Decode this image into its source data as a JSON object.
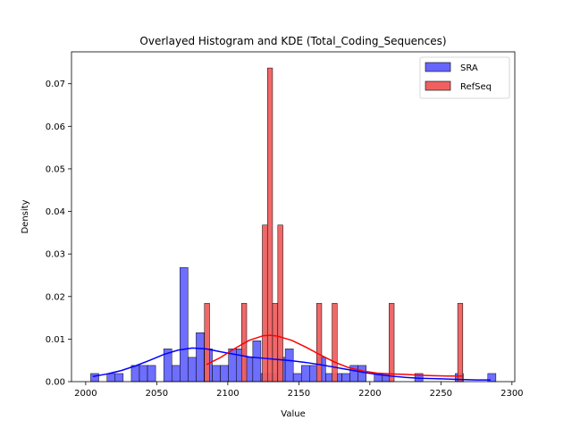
{
  "chart_data": {
    "type": "histogram",
    "title": "Overlayed Histogram and KDE (Total_Coding_Sequences)",
    "xlabel": "Value",
    "ylabel": "Density",
    "xlim": [
      1990,
      2302
    ],
    "ylim": [
      0,
      0.0775
    ],
    "xticks": [
      2000,
      2050,
      2100,
      2150,
      2200,
      2250,
      2300
    ],
    "yticks": [
      0.0,
      0.01,
      0.02,
      0.03,
      0.04,
      0.05,
      0.06,
      0.07
    ],
    "ytick_labels": [
      "0.00",
      "0.01",
      "0.02",
      "0.03",
      "0.04",
      "0.05",
      "0.06",
      "0.07"
    ],
    "legend": {
      "position": "top-right"
    },
    "series": [
      {
        "name": "SRA",
        "color": "#0000ff",
        "fill": "#6666ff",
        "bin_width": 5.7,
        "bins": [
          {
            "x0": 2003.5,
            "y": 0.0019
          },
          {
            "x0": 2015.0,
            "y": 0.0019
          },
          {
            "x0": 2020.7,
            "y": 0.0019
          },
          {
            "x0": 2032.1,
            "y": 0.0038
          },
          {
            "x0": 2037.8,
            "y": 0.0038
          },
          {
            "x0": 2043.5,
            "y": 0.0038
          },
          {
            "x0": 2054.9,
            "y": 0.0077
          },
          {
            "x0": 2060.6,
            "y": 0.0038
          },
          {
            "x0": 2066.3,
            "y": 0.0268
          },
          {
            "x0": 2072.0,
            "y": 0.0057
          },
          {
            "x0": 2077.7,
            "y": 0.0115
          },
          {
            "x0": 2083.4,
            "y": 0.0077
          },
          {
            "x0": 2089.1,
            "y": 0.0038
          },
          {
            "x0": 2094.8,
            "y": 0.0038
          },
          {
            "x0": 2100.5,
            "y": 0.0077
          },
          {
            "x0": 2106.2,
            "y": 0.0077
          },
          {
            "x0": 2111.9,
            "y": 0.0057
          },
          {
            "x0": 2117.6,
            "y": 0.0096
          },
          {
            "x0": 2123.3,
            "y": 0.0019
          },
          {
            "x0": 2129.0,
            "y": 0.0019
          },
          {
            "x0": 2134.7,
            "y": 0.0057
          },
          {
            "x0": 2140.4,
            "y": 0.0077
          },
          {
            "x0": 2146.1,
            "y": 0.0019
          },
          {
            "x0": 2151.8,
            "y": 0.0038
          },
          {
            "x0": 2157.5,
            "y": 0.0038
          },
          {
            "x0": 2163.2,
            "y": 0.0057
          },
          {
            "x0": 2168.9,
            "y": 0.0019
          },
          {
            "x0": 2174.6,
            "y": 0.0019
          },
          {
            "x0": 2180.3,
            "y": 0.0019
          },
          {
            "x0": 2186.0,
            "y": 0.0038
          },
          {
            "x0": 2191.7,
            "y": 0.0038
          },
          {
            "x0": 2203.1,
            "y": 0.0019
          },
          {
            "x0": 2208.8,
            "y": 0.0019
          },
          {
            "x0": 2231.6,
            "y": 0.0019
          },
          {
            "x0": 2260.1,
            "y": 0.0019
          },
          {
            "x0": 2283.0,
            "y": 0.0019
          }
        ],
        "kde": {
          "x": [
            2005,
            2015,
            2025,
            2035,
            2045,
            2055,
            2065,
            2075,
            2085,
            2095,
            2105,
            2115,
            2125,
            2135,
            2145,
            2155,
            2165,
            2175,
            2185,
            2195,
            2205,
            2215,
            2225,
            2235,
            2245,
            2255,
            2265,
            2275,
            2285
          ],
          "y": [
            0.0012,
            0.0018,
            0.0026,
            0.0037,
            0.005,
            0.0064,
            0.0074,
            0.0079,
            0.0077,
            0.007,
            0.0064,
            0.0058,
            0.0055,
            0.0052,
            0.0049,
            0.0045,
            0.004,
            0.0034,
            0.0028,
            0.0022,
            0.0017,
            0.0013,
            0.001,
            0.0008,
            0.0007,
            0.0006,
            0.0005,
            0.0004,
            0.0004
          ]
        }
      },
      {
        "name": "RefSeq",
        "color": "#ff0000",
        "fill": "#f06060",
        "bin_width": 3.6,
        "bins": [
          {
            "x0": 2083.6,
            "y": 0.0184
          },
          {
            "x0": 2109.7,
            "y": 0.0184
          },
          {
            "x0": 2124.3,
            "y": 0.0368
          },
          {
            "x0": 2127.9,
            "y": 0.0737
          },
          {
            "x0": 2131.5,
            "y": 0.0184
          },
          {
            "x0": 2135.2,
            "y": 0.0368
          },
          {
            "x0": 2162.5,
            "y": 0.0184
          },
          {
            "x0": 2173.4,
            "y": 0.0184
          },
          {
            "x0": 2213.5,
            "y": 0.0184
          },
          {
            "x0": 2261.8,
            "y": 0.0184
          }
        ],
        "kde": {
          "x": [
            2085,
            2095,
            2105,
            2115,
            2125,
            2130,
            2135,
            2145,
            2155,
            2165,
            2175,
            2185,
            2195,
            2205,
            2215,
            2225,
            2235,
            2245,
            2255,
            2265
          ],
          "y": [
            0.004,
            0.0057,
            0.0078,
            0.0097,
            0.0108,
            0.0109,
            0.0107,
            0.0097,
            0.0081,
            0.0063,
            0.0046,
            0.0033,
            0.0025,
            0.002,
            0.0018,
            0.0017,
            0.0015,
            0.0014,
            0.0013,
            0.0013
          ]
        }
      }
    ]
  }
}
